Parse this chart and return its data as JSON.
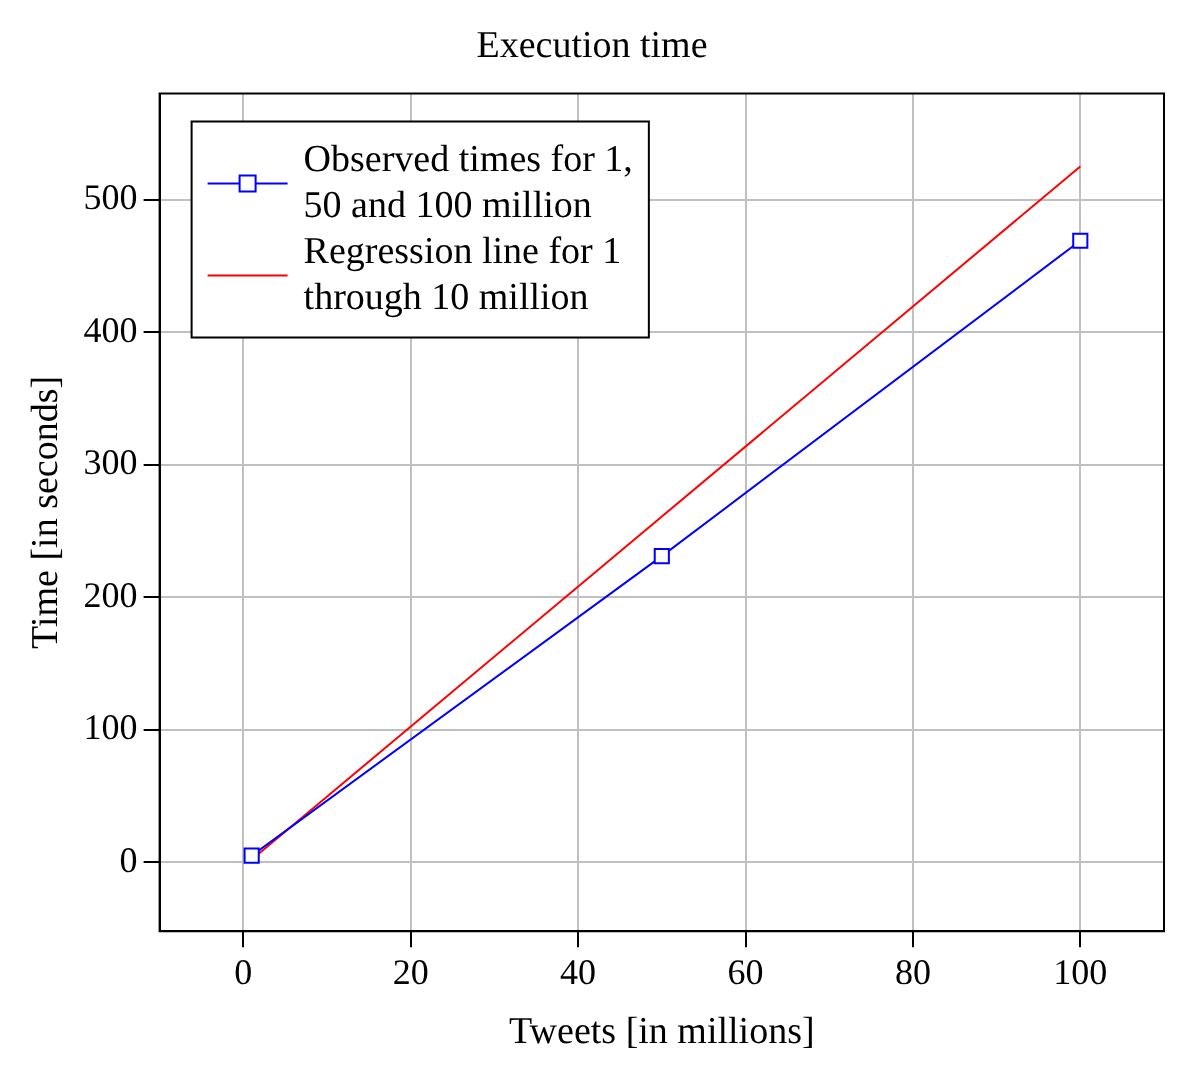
{
  "chart_data": {
    "type": "line",
    "title": "Execution time",
    "xlabel": "Tweets [in millions]",
    "ylabel": "Time [in seconds]",
    "series": [
      {
        "name": "Observed times for 1, 50 and 100 million",
        "color": "#0000ff",
        "marker": "square",
        "x": [
          1,
          50,
          100
        ],
        "values": [
          5,
          231,
          469
        ]
      },
      {
        "name": "Regression line for 1 through 10 million",
        "color": "#ff0000",
        "marker": "none",
        "x": [
          1,
          100
        ],
        "values": [
          2,
          525
        ]
      }
    ],
    "xlim": [
      -10,
      110
    ],
    "ylim": [
      -52,
      580
    ],
    "xticks": [
      0,
      20,
      40,
      60,
      80,
      100
    ],
    "yticks": [
      0,
      100,
      200,
      300,
      400,
      500
    ],
    "grid": true,
    "legend": "top left"
  }
}
